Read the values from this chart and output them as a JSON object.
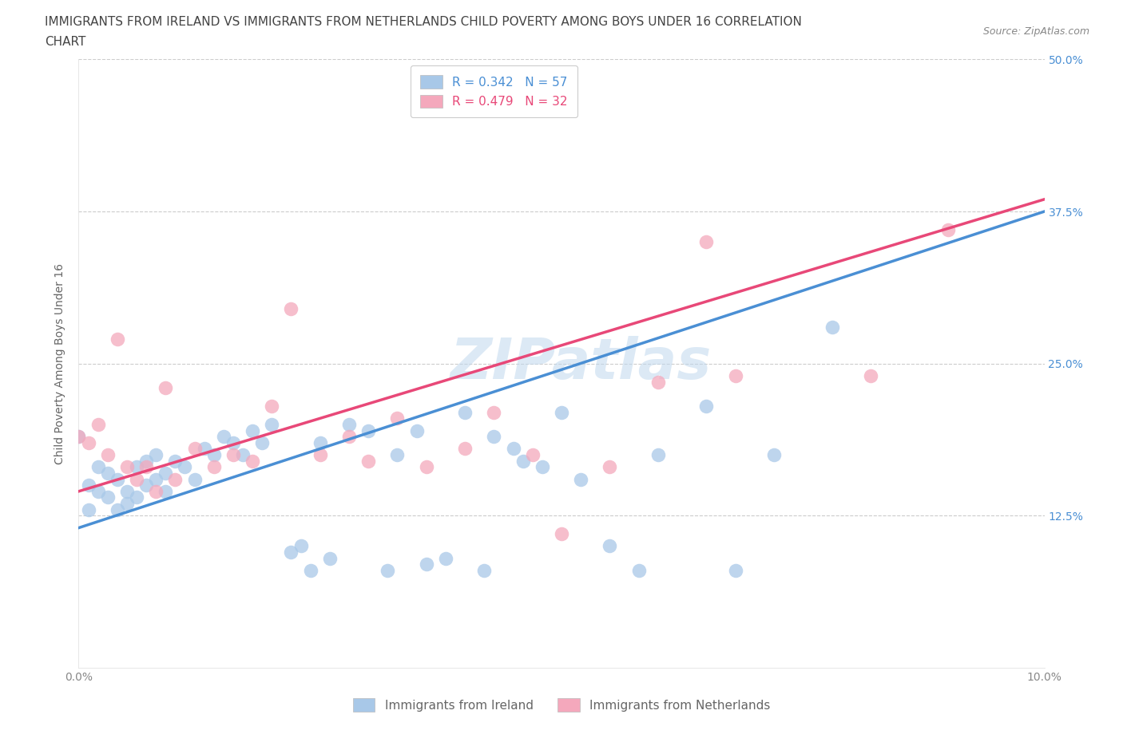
{
  "title_line1": "IMMIGRANTS FROM IRELAND VS IMMIGRANTS FROM NETHERLANDS CHILD POVERTY AMONG BOYS UNDER 16 CORRELATION",
  "title_line2": "CHART",
  "source": "Source: ZipAtlas.com",
  "ylabel": "Child Poverty Among Boys Under 16",
  "xlim": [
    0.0,
    0.1
  ],
  "ylim": [
    0.0,
    0.5
  ],
  "x_ticks": [
    0.0,
    0.025,
    0.05,
    0.075,
    0.1
  ],
  "x_tick_labels": [
    "0.0%",
    "",
    "",
    "",
    "10.0%"
  ],
  "y_ticks": [
    0.0,
    0.125,
    0.25,
    0.375,
    0.5
  ],
  "y_tick_labels_right": [
    "",
    "12.5%",
    "25.0%",
    "37.5%",
    "50.0%"
  ],
  "ireland_color": "#a8c8e8",
  "netherlands_color": "#f4a8bc",
  "ireland_line_color": "#4a8fd4",
  "netherlands_line_color": "#e84878",
  "ireland_R": 0.342,
  "ireland_N": 57,
  "netherlands_R": 0.479,
  "netherlands_N": 32,
  "watermark": "ZIPatlas",
  "ireland_line_x0": 0.0,
  "ireland_line_y0": 0.115,
  "ireland_line_x1": 0.1,
  "ireland_line_y1": 0.375,
  "netherlands_line_x0": 0.0,
  "netherlands_line_y0": 0.145,
  "netherlands_line_x1": 0.1,
  "netherlands_line_y1": 0.385,
  "ireland_x": [
    0.0,
    0.001,
    0.001,
    0.002,
    0.002,
    0.003,
    0.003,
    0.004,
    0.004,
    0.005,
    0.005,
    0.006,
    0.006,
    0.007,
    0.007,
    0.008,
    0.008,
    0.009,
    0.009,
    0.01,
    0.011,
    0.012,
    0.013,
    0.014,
    0.015,
    0.016,
    0.017,
    0.018,
    0.019,
    0.02,
    0.022,
    0.023,
    0.024,
    0.025,
    0.026,
    0.028,
    0.03,
    0.032,
    0.033,
    0.035,
    0.036,
    0.038,
    0.04,
    0.042,
    0.043,
    0.045,
    0.046,
    0.048,
    0.05,
    0.052,
    0.055,
    0.058,
    0.06,
    0.065,
    0.068,
    0.072,
    0.078
  ],
  "ireland_y": [
    0.19,
    0.13,
    0.15,
    0.145,
    0.165,
    0.14,
    0.16,
    0.155,
    0.13,
    0.135,
    0.145,
    0.14,
    0.165,
    0.15,
    0.17,
    0.155,
    0.175,
    0.145,
    0.16,
    0.17,
    0.165,
    0.155,
    0.18,
    0.175,
    0.19,
    0.185,
    0.175,
    0.195,
    0.185,
    0.2,
    0.095,
    0.1,
    0.08,
    0.185,
    0.09,
    0.2,
    0.195,
    0.08,
    0.175,
    0.195,
    0.085,
    0.09,
    0.21,
    0.08,
    0.19,
    0.18,
    0.17,
    0.165,
    0.21,
    0.155,
    0.1,
    0.08,
    0.175,
    0.215,
    0.08,
    0.175,
    0.28
  ],
  "netherlands_x": [
    0.0,
    0.001,
    0.002,
    0.003,
    0.004,
    0.005,
    0.006,
    0.007,
    0.008,
    0.009,
    0.01,
    0.012,
    0.014,
    0.016,
    0.018,
    0.02,
    0.022,
    0.025,
    0.028,
    0.03,
    0.033,
    0.036,
    0.04,
    0.043,
    0.047,
    0.05,
    0.055,
    0.06,
    0.065,
    0.068,
    0.082,
    0.09
  ],
  "netherlands_y": [
    0.19,
    0.185,
    0.2,
    0.175,
    0.27,
    0.165,
    0.155,
    0.165,
    0.145,
    0.23,
    0.155,
    0.18,
    0.165,
    0.175,
    0.17,
    0.215,
    0.295,
    0.175,
    0.19,
    0.17,
    0.205,
    0.165,
    0.18,
    0.21,
    0.175,
    0.11,
    0.165,
    0.235,
    0.35,
    0.24,
    0.24,
    0.36
  ],
  "grid_color": "#cccccc",
  "background_color": "#ffffff",
  "title_fontsize": 11,
  "axis_label_fontsize": 10,
  "tick_fontsize": 10,
  "legend_fontsize": 11
}
